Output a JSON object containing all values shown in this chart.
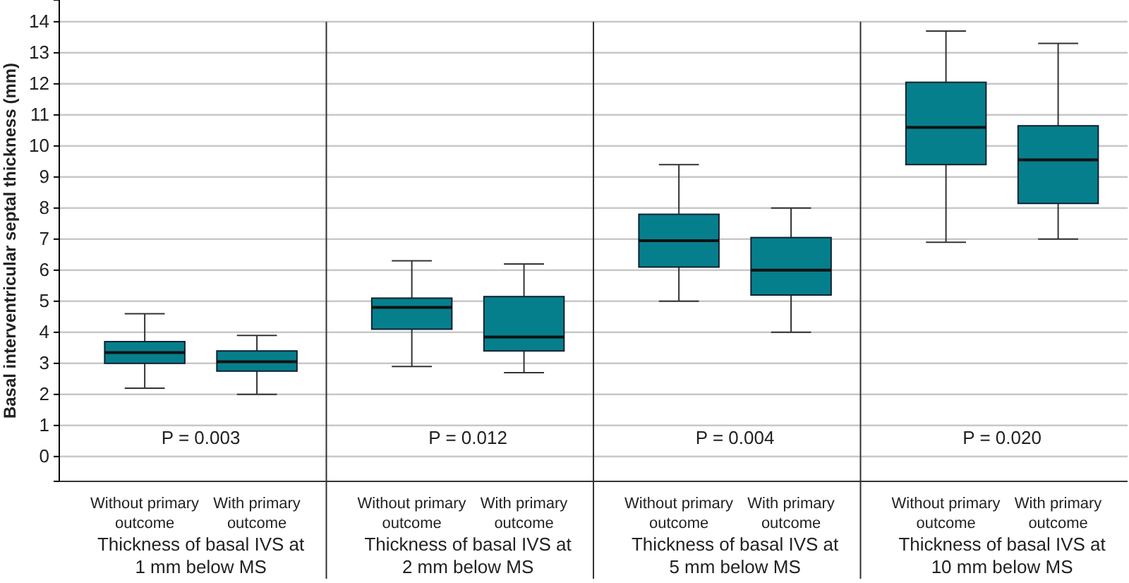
{
  "chart_data": {
    "type": "box",
    "ylabel": "Basal interventricular septal thickness (mm)",
    "categories": [
      "Without primary outcome",
      "With primary outcome",
      "Without primary outcome",
      "With primary outcome",
      "Without primary outcome",
      "With primary outcome",
      "Without primary outcome",
      "With primary outcome"
    ],
    "color": "#067f8c",
    "boxes": [
      {
        "low": 2.2,
        "q1": 3.0,
        "median": 3.35,
        "q3": 3.7,
        "high": 4.6
      },
      {
        "low": 2.0,
        "q1": 2.75,
        "median": 3.05,
        "q3": 3.4,
        "high": 3.9
      },
      {
        "low": 2.9,
        "q1": 4.1,
        "median": 4.8,
        "q3": 5.1,
        "high": 6.3
      },
      {
        "low": 2.7,
        "q1": 3.4,
        "median": 3.85,
        "q3": 5.15,
        "high": 6.2
      },
      {
        "low": 5.0,
        "q1": 6.1,
        "median": 6.95,
        "q3": 7.8,
        "high": 9.4
      },
      {
        "low": 4.0,
        "q1": 5.2,
        "median": 6.0,
        "q3": 7.05,
        "high": 8.0
      },
      {
        "low": 6.9,
        "q1": 9.4,
        "median": 10.6,
        "q3": 12.05,
        "high": 13.7
      },
      {
        "low": 7.0,
        "q1": 8.15,
        "median": 9.55,
        "q3": 10.65,
        "high": 13.3
      }
    ],
    "ylim": [
      -0.8,
      14.7
    ],
    "yticks": [
      0,
      1,
      2,
      3,
      4,
      5,
      6,
      7,
      8,
      9,
      10,
      11,
      12,
      13,
      14
    ],
    "grid": "y",
    "annotations": [
      "P = 0.003",
      "P = 0.012",
      "P = 0.004",
      "P = 0.020",
      "Thickness of basal IVS at 1 mm below MS",
      "Thickness of basal IVS at 2 mm below MS",
      "Thickness of basal IVS at 5 mm below MS",
      "Thickness of basal IVS at 10 mm below MS"
    ]
  }
}
